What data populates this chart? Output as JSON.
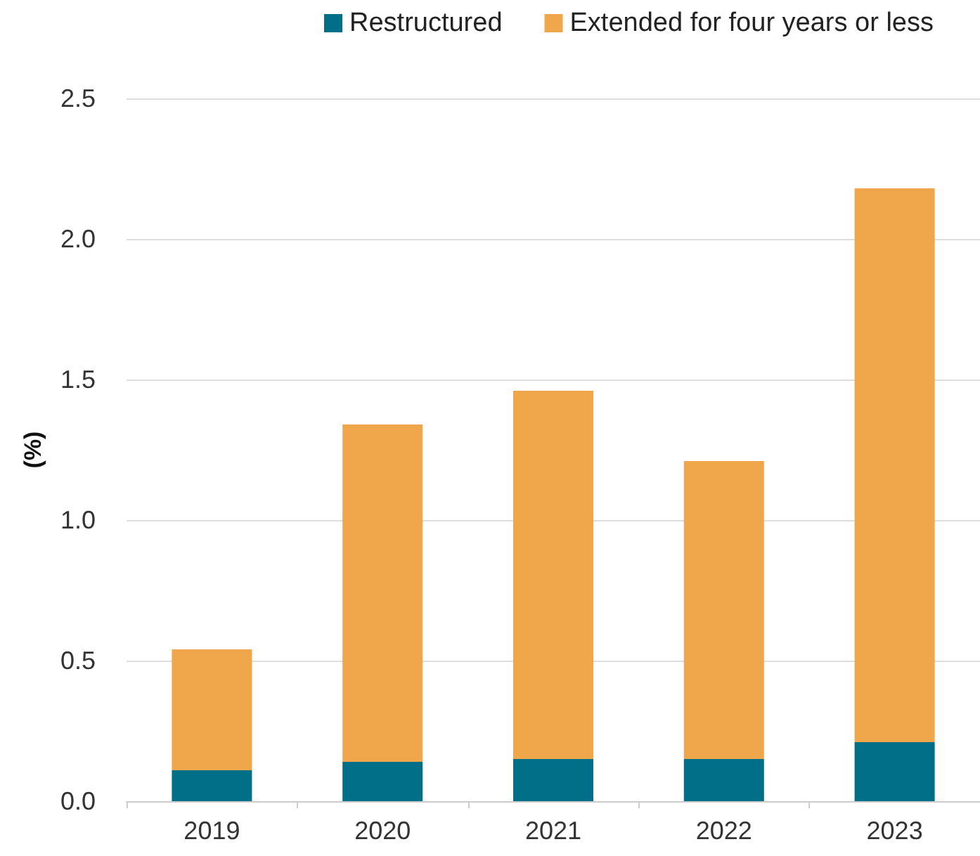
{
  "chart_data": {
    "type": "bar",
    "stacked": true,
    "ylabel": "(%)",
    "categories": [
      "2019",
      "2020",
      "2021",
      "2022",
      "2023"
    ],
    "series": [
      {
        "name": "Restructured",
        "color": "#006f87",
        "values": [
          0.11,
          0.14,
          0.15,
          0.15,
          0.21
        ]
      },
      {
        "name": "Extended for four years or less",
        "color": "#f0a64a",
        "values": [
          0.43,
          1.2,
          1.31,
          1.06,
          1.97
        ]
      }
    ],
    "ylim": [
      0,
      2.5
    ],
    "yticks": [
      {
        "value": 0,
        "label": "0.0"
      },
      {
        "value": 0.5,
        "label": "0.5"
      },
      {
        "value": 1,
        "label": "1.0"
      },
      {
        "value": 1.5,
        "label": "1.5"
      },
      {
        "value": 2,
        "label": "2.0"
      },
      {
        "value": 2.5,
        "label": "2.5"
      }
    ],
    "grid": "y",
    "legend": "top right"
  }
}
